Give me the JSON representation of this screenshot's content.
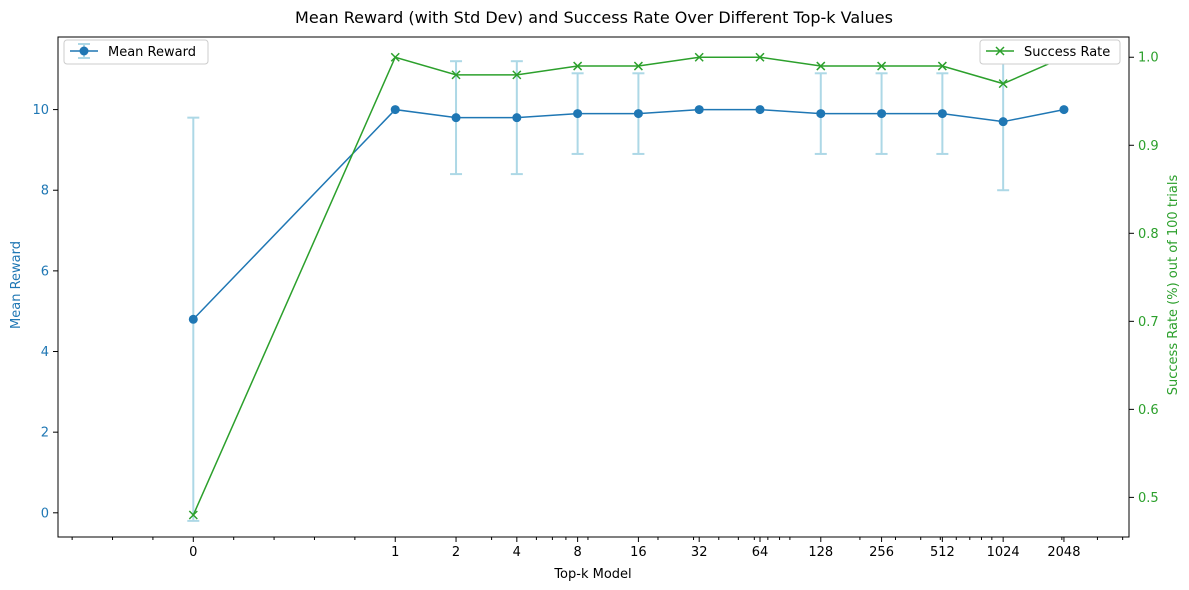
{
  "chart_data": {
    "type": "line",
    "title": "Mean Reward (with Std Dev) and Success Rate Over Different Top-k Values",
    "xlabel": "Top-k Model",
    "ylabel_left": "Mean Reward",
    "ylabel_right": "Success Rate (%) out of 100 trials",
    "x_scale": "symlog",
    "categories": [
      "0",
      "1",
      "2",
      "4",
      "8",
      "16",
      "32",
      "64",
      "128",
      "256",
      "512",
      "1024",
      "2048"
    ],
    "left_axis": {
      "ylim": [
        -0.6,
        11.8
      ],
      "ticks": [
        0,
        2,
        4,
        6,
        8,
        10
      ],
      "color": "#1f77b4"
    },
    "right_axis": {
      "ylim": [
        0.455,
        1.023
      ],
      "ticks": [
        0.5,
        0.6,
        0.7,
        0.8,
        0.9,
        1.0
      ],
      "tick_labels": [
        "0.5",
        "0.6",
        "0.7",
        "0.8",
        "0.9",
        "1.0"
      ],
      "color": "#2ca02c"
    },
    "series": [
      {
        "name": "Mean Reward",
        "axis": "left",
        "color": "#1f77b4",
        "marker": "circle",
        "values": [
          4.8,
          10.0,
          9.8,
          9.8,
          9.9,
          9.9,
          10.0,
          10.0,
          9.9,
          9.9,
          9.9,
          9.7,
          10.0
        ],
        "error": [
          5.0,
          0.0,
          1.4,
          1.4,
          1.0,
          1.0,
          0.0,
          0.0,
          1.0,
          1.0,
          1.0,
          1.7,
          0.0
        ],
        "error_color": "#add8e6"
      },
      {
        "name": "Success Rate",
        "axis": "right",
        "color": "#2ca02c",
        "marker": "x",
        "values": [
          0.48,
          1.0,
          0.98,
          0.98,
          0.99,
          0.99,
          1.0,
          1.0,
          0.99,
          0.99,
          0.99,
          0.97,
          1.0
        ]
      }
    ],
    "legends": {
      "left": "upper-left",
      "right": "upper-right"
    },
    "grid": false
  }
}
